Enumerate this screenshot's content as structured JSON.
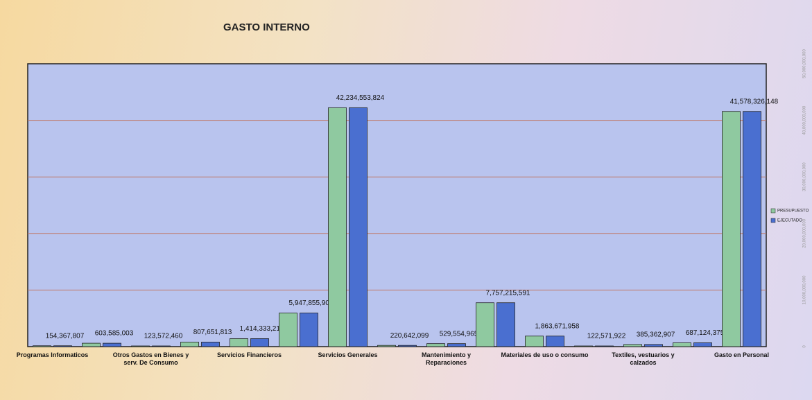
{
  "chart_data": {
    "type": "bar",
    "title": "GASTO INTERNO",
    "categories": [
      "Programas Informaticos",
      null,
      "Otros Gastos en Bienes y serv. De Consumo",
      null,
      "Servicios Financieros",
      null,
      "Servicios Generales",
      null,
      "Mantenimiento y Reparaciones",
      null,
      "Materiales de uso o consumo",
      null,
      "Textiles, vestuarios y calzados",
      null,
      "Gasto en Personal"
    ],
    "series": [
      {
        "name": "PRESUPUESTO",
        "color": "#8fc9a0",
        "values": [
          154367807,
          603585003,
          123572460,
          807651813,
          1414333217,
          5947855906,
          42234553824,
          220642099,
          529554965,
          7757215591,
          1863671958,
          122571922,
          385362907,
          687124375,
          41578326148
        ],
        "value_labels": [
          "154,367,807",
          "603,585,003",
          "123,572,460",
          "807,651,813",
          "1,414,333,217",
          "5,947,855,906",
          "42,234,553,824",
          "220,642,099",
          "529,554,965",
          "7,757,215,591",
          "1,863,671,958",
          "122,571,922",
          "385,362,907",
          "687,124,375",
          "41,578,326,148"
        ]
      },
      {
        "name": "EJECUTADO",
        "color": "#4a6fd0",
        "values": [
          154367807,
          603585003,
          123572460,
          807651813,
          1414333217,
          5947855906,
          42234553824,
          220642099,
          529554965,
          7757215591,
          1863671958,
          122571922,
          385362907,
          687124375,
          41578326148
        ]
      }
    ],
    "ylim": [
      0,
      50000000000
    ],
    "yticks": [
      {
        "value": 0,
        "label": "0"
      },
      {
        "value": 10000000000,
        "label": "10,000,000,000"
      },
      {
        "value": 20000000000,
        "label": "20,000,000,000"
      },
      {
        "value": 30000000000,
        "label": "30,000,000,000"
      },
      {
        "value": 40000000000,
        "label": "40,000,000,000"
      },
      {
        "value": 50000000000,
        "label": "50,000,000,000"
      }
    ],
    "grid": true,
    "legend": "right"
  }
}
